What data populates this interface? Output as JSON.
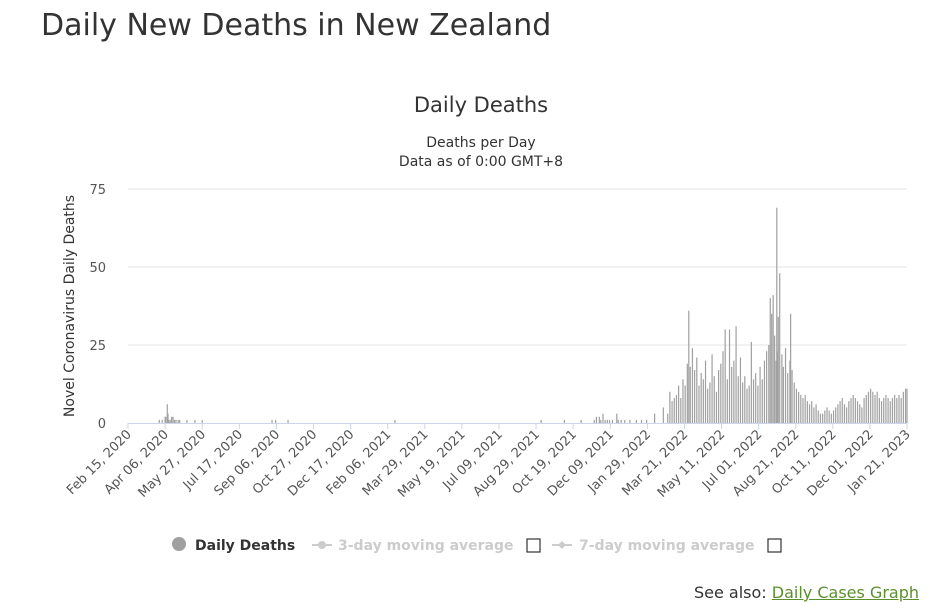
{
  "page": {
    "title": "Daily New Deaths in New Zealand"
  },
  "chart_data": {
    "type": "bar",
    "title": "Daily Deaths",
    "subtitle": "Deaths per Day",
    "subtitle2": "Data as of 0:00 GMT+8",
    "ylabel": "Novel Coronavirus Daily Deaths",
    "xlabel": "",
    "ylim": [
      0,
      75
    ],
    "yticks": [
      0,
      25,
      50,
      75
    ],
    "x_start": "2020-02-15",
    "x_end": "2023-01-21",
    "xtick_labels": [
      "Feb 15, 2020",
      "Apr 06, 2020",
      "May 27, 2020",
      "Jul 17, 2020",
      "Sep 06, 2020",
      "Oct 27, 2020",
      "Dec 17, 2020",
      "Feb 06, 2021",
      "Mar 29, 2021",
      "May 19, 2021",
      "Jul 09, 2021",
      "Aug 29, 2021",
      "Oct 19, 2021",
      "Dec 09, 2021",
      "Jan 29, 2022",
      "Mar 21, 2022",
      "May 11, 2022",
      "Jul 01, 2022",
      "Aug 21, 2022",
      "Oct 11, 2022",
      "Dec 01, 2022",
      "Jan 21, 2023"
    ],
    "grid": true,
    "series": [
      {
        "name": "Daily Deaths",
        "color": "#a0a0a0",
        "points": [
          [
            "2020-03-29",
            1
          ],
          [
            "2020-04-02",
            1
          ],
          [
            "2020-04-06",
            2
          ],
          [
            "2020-04-07",
            2
          ],
          [
            "2020-04-09",
            6
          ],
          [
            "2020-04-10",
            3
          ],
          [
            "2020-04-11",
            1
          ],
          [
            "2020-04-13",
            1
          ],
          [
            "2020-04-15",
            2
          ],
          [
            "2020-04-17",
            2
          ],
          [
            "2020-04-19",
            1
          ],
          [
            "2020-04-21",
            1
          ],
          [
            "2020-04-24",
            1
          ],
          [
            "2020-04-26",
            1
          ],
          [
            "2020-05-06",
            1
          ],
          [
            "2020-05-17",
            1
          ],
          [
            "2020-05-27",
            1
          ],
          [
            "2020-08-31",
            1
          ],
          [
            "2020-09-05",
            1
          ],
          [
            "2020-09-22",
            1
          ],
          [
            "2021-02-16",
            1
          ],
          [
            "2021-09-05",
            1
          ],
          [
            "2021-10-07",
            1
          ],
          [
            "2021-10-30",
            1
          ],
          [
            "2021-11-17",
            1
          ],
          [
            "2021-11-20",
            2
          ],
          [
            "2021-11-24",
            2
          ],
          [
            "2021-11-26",
            1
          ],
          [
            "2021-11-29",
            3
          ],
          [
            "2021-12-02",
            1
          ],
          [
            "2021-12-05",
            1
          ],
          [
            "2021-12-08",
            1
          ],
          [
            "2021-12-12",
            1
          ],
          [
            "2021-12-18",
            3
          ],
          [
            "2021-12-20",
            1
          ],
          [
            "2021-12-24",
            1
          ],
          [
            "2021-12-29",
            1
          ],
          [
            "2022-01-05",
            1
          ],
          [
            "2022-01-14",
            1
          ],
          [
            "2022-01-21",
            1
          ],
          [
            "2022-01-28",
            1
          ],
          [
            "2022-02-08",
            3
          ],
          [
            "2022-02-20",
            5
          ],
          [
            "2022-02-26",
            3
          ],
          [
            "2022-03-01",
            10
          ],
          [
            "2022-03-04",
            7
          ],
          [
            "2022-03-07",
            8
          ],
          [
            "2022-03-10",
            9
          ],
          [
            "2022-03-13",
            12
          ],
          [
            "2022-03-16",
            8
          ],
          [
            "2022-03-19",
            14
          ],
          [
            "2022-03-22",
            12
          ],
          [
            "2022-03-25",
            19
          ],
          [
            "2022-03-27",
            36
          ],
          [
            "2022-03-29",
            18
          ],
          [
            "2022-04-01",
            24
          ],
          [
            "2022-04-04",
            17
          ],
          [
            "2022-04-07",
            21
          ],
          [
            "2022-04-10",
            12
          ],
          [
            "2022-04-13",
            16
          ],
          [
            "2022-04-16",
            14
          ],
          [
            "2022-04-19",
            20
          ],
          [
            "2022-04-22",
            11
          ],
          [
            "2022-04-25",
            13
          ],
          [
            "2022-04-28",
            22
          ],
          [
            "2022-05-01",
            15
          ],
          [
            "2022-05-04",
            10
          ],
          [
            "2022-05-07",
            17
          ],
          [
            "2022-05-10",
            19
          ],
          [
            "2022-05-13",
            23
          ],
          [
            "2022-05-16",
            30
          ],
          [
            "2022-05-19",
            14
          ],
          [
            "2022-05-22",
            30
          ],
          [
            "2022-05-25",
            18
          ],
          [
            "2022-05-28",
            20
          ],
          [
            "2022-05-31",
            31
          ],
          [
            "2022-06-03",
            15
          ],
          [
            "2022-06-06",
            21
          ],
          [
            "2022-06-09",
            13
          ],
          [
            "2022-06-12",
            15
          ],
          [
            "2022-06-15",
            11
          ],
          [
            "2022-06-18",
            12
          ],
          [
            "2022-06-21",
            26
          ],
          [
            "2022-06-24",
            14
          ],
          [
            "2022-06-27",
            16
          ],
          [
            "2022-06-30",
            12
          ],
          [
            "2022-07-03",
            18
          ],
          [
            "2022-07-06",
            14
          ],
          [
            "2022-07-09",
            20
          ],
          [
            "2022-07-12",
            23
          ],
          [
            "2022-07-15",
            25
          ],
          [
            "2022-07-17",
            40
          ],
          [
            "2022-07-19",
            35
          ],
          [
            "2022-07-21",
            41
          ],
          [
            "2022-07-23",
            28
          ],
          [
            "2022-07-25",
            20
          ],
          [
            "2022-07-26",
            69
          ],
          [
            "2022-07-27",
            23
          ],
          [
            "2022-07-28",
            34
          ],
          [
            "2022-07-30",
            48
          ],
          [
            "2022-08-02",
            22
          ],
          [
            "2022-08-04",
            18
          ],
          [
            "2022-08-07",
            24
          ],
          [
            "2022-08-10",
            16
          ],
          [
            "2022-08-13",
            20
          ],
          [
            "2022-08-14",
            35
          ],
          [
            "2022-08-16",
            17
          ],
          [
            "2022-08-19",
            13
          ],
          [
            "2022-08-22",
            11
          ],
          [
            "2022-08-25",
            10
          ],
          [
            "2022-08-28",
            9
          ],
          [
            "2022-08-31",
            8
          ],
          [
            "2022-09-03",
            9
          ],
          [
            "2022-09-06",
            7
          ],
          [
            "2022-09-09",
            6
          ],
          [
            "2022-09-12",
            7
          ],
          [
            "2022-09-15",
            5
          ],
          [
            "2022-09-18",
            6
          ],
          [
            "2022-09-21",
            4
          ],
          [
            "2022-09-24",
            3
          ],
          [
            "2022-09-27",
            3
          ],
          [
            "2022-09-30",
            4
          ],
          [
            "2022-10-03",
            5
          ],
          [
            "2022-10-06",
            4
          ],
          [
            "2022-10-09",
            3
          ],
          [
            "2022-10-12",
            4
          ],
          [
            "2022-10-15",
            5
          ],
          [
            "2022-10-18",
            6
          ],
          [
            "2022-10-21",
            7
          ],
          [
            "2022-10-24",
            8
          ],
          [
            "2022-10-27",
            6
          ],
          [
            "2022-10-30",
            5
          ],
          [
            "2022-11-02",
            7
          ],
          [
            "2022-11-05",
            8
          ],
          [
            "2022-11-08",
            9
          ],
          [
            "2022-11-11",
            8
          ],
          [
            "2022-11-14",
            7
          ],
          [
            "2022-11-17",
            6
          ],
          [
            "2022-11-20",
            5
          ],
          [
            "2022-11-23",
            8
          ],
          [
            "2022-11-26",
            9
          ],
          [
            "2022-11-29",
            10
          ],
          [
            "2022-12-02",
            11
          ],
          [
            "2022-12-05",
            10
          ],
          [
            "2022-12-08",
            9
          ],
          [
            "2022-12-11",
            10
          ],
          [
            "2022-12-14",
            8
          ],
          [
            "2022-12-17",
            7
          ],
          [
            "2022-12-20",
            8
          ],
          [
            "2022-12-23",
            9
          ],
          [
            "2022-12-26",
            8
          ],
          [
            "2022-12-29",
            7
          ],
          [
            "2023-01-01",
            8
          ],
          [
            "2023-01-04",
            9
          ],
          [
            "2023-01-07",
            8
          ],
          [
            "2023-01-10",
            9
          ],
          [
            "2023-01-13",
            8
          ],
          [
            "2023-01-16",
            10
          ],
          [
            "2023-01-19",
            11
          ],
          [
            "2023-01-21",
            11
          ]
        ]
      },
      {
        "name": "3-day moving average",
        "visible": false,
        "color": "#cccccc"
      },
      {
        "name": "7-day moving average",
        "visible": false,
        "color": "#cccccc"
      }
    ]
  },
  "legend": {
    "position": "bottom"
  },
  "see_also": {
    "label": "See also:",
    "link": "Daily Cases Graph"
  }
}
